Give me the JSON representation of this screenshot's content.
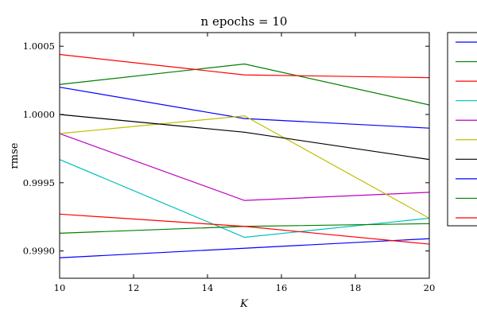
{
  "chart_data": {
    "type": "line",
    "title": "n epochs = 10",
    "xlabel": "K",
    "ylabel": "rmse",
    "x": [
      10,
      15,
      20
    ],
    "xlim": [
      10,
      20
    ],
    "ylim": [
      0.9988,
      1.0006
    ],
    "xticks": [
      10,
      12,
      14,
      16,
      18,
      20
    ],
    "xtick_labels": [
      "10",
      "12",
      "14",
      "16",
      "18",
      "20"
    ],
    "yticks": [
      0.999,
      0.9995,
      1.0,
      1.0005
    ],
    "ytick_labels": [
      "0.9990",
      "0.9995",
      "1.0000",
      "1.0005"
    ],
    "grid": false,
    "legend": "right",
    "series": [
      {
        "color": "#0000ff",
        "values": [
          1.0002,
          0.99997,
          0.9999
        ]
      },
      {
        "color": "#008000",
        "values": [
          1.00022,
          1.00037,
          1.00007
        ]
      },
      {
        "color": "#ff0000",
        "values": [
          1.00044,
          1.00029,
          1.00027
        ]
      },
      {
        "color": "#00bfbf",
        "values": [
          0.99967,
          0.9991,
          0.99924
        ]
      },
      {
        "color": "#bf00bf",
        "values": [
          0.99986,
          0.99937,
          0.99943
        ]
      },
      {
        "color": "#bfbf00",
        "values": [
          0.99986,
          0.99999,
          0.99924
        ]
      },
      {
        "color": "#000000",
        "values": [
          1.0,
          0.99987,
          0.99967
        ]
      },
      {
        "color": "#0000ff",
        "values": [
          0.99895,
          0.99902,
          0.99909
        ]
      },
      {
        "color": "#008000",
        "values": [
          0.99913,
          0.99918,
          0.9992
        ]
      },
      {
        "color": "#ff0000",
        "values": [
          0.99927,
          0.99918,
          0.99905
        ]
      }
    ]
  }
}
